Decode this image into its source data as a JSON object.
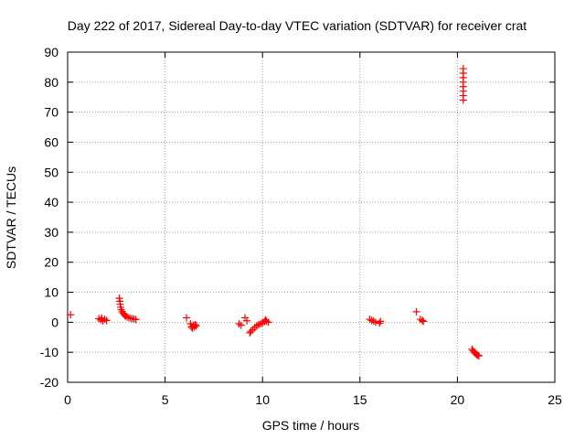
{
  "chart_data": {
    "type": "scatter",
    "title": "Day 222 of 2017, Sidereal Day-to-day VTEC variation (SDTVAR) for receiver crat",
    "xlabel": "GPS time / hours",
    "ylabel": "SDTVAR / TECUs",
    "xlim": [
      0,
      25
    ],
    "ylim": [
      -20,
      90
    ],
    "x_ticks": [
      0,
      5,
      10,
      15,
      20,
      25
    ],
    "y_ticks": [
      -20,
      -10,
      0,
      10,
      20,
      30,
      40,
      50,
      60,
      70,
      80,
      90
    ],
    "grid": true,
    "marker": "+",
    "color": "#ff0000",
    "series": [
      {
        "name": "SDTVAR",
        "points": [
          [
            0.15,
            2.5
          ],
          [
            1.6,
            1.2
          ],
          [
            1.7,
            0.8
          ],
          [
            1.8,
            0.4
          ],
          [
            1.9,
            1.0
          ],
          [
            2.0,
            0.6
          ],
          [
            1.75,
            1.4
          ],
          [
            2.65,
            8.0
          ],
          [
            2.68,
            7.0
          ],
          [
            2.7,
            6.0
          ],
          [
            2.72,
            5.0
          ],
          [
            2.75,
            4.2
          ],
          [
            2.8,
            3.5
          ],
          [
            2.85,
            3.0
          ],
          [
            2.9,
            2.6
          ],
          [
            2.95,
            2.2
          ],
          [
            3.0,
            1.9
          ],
          [
            3.1,
            1.6
          ],
          [
            3.2,
            1.4
          ],
          [
            3.3,
            1.2
          ],
          [
            3.4,
            1.1
          ],
          [
            3.5,
            0.9
          ],
          [
            6.1,
            1.5
          ],
          [
            6.3,
            -0.5
          ],
          [
            6.35,
            -1.5
          ],
          [
            6.4,
            -2.0
          ],
          [
            6.45,
            -1.0
          ],
          [
            6.5,
            -1.6
          ],
          [
            6.55,
            -0.8
          ],
          [
            6.6,
            -1.2
          ],
          [
            8.8,
            -0.5
          ],
          [
            8.9,
            -1.0
          ],
          [
            9.1,
            1.5
          ],
          [
            9.2,
            0.5
          ],
          [
            9.35,
            -3.5
          ],
          [
            9.4,
            -3.0
          ],
          [
            9.5,
            -2.5
          ],
          [
            9.6,
            -1.8
          ],
          [
            9.7,
            -1.2
          ],
          [
            9.8,
            -0.8
          ],
          [
            9.9,
            -0.5
          ],
          [
            10.0,
            -0.2
          ],
          [
            10.1,
            0.2
          ],
          [
            10.15,
            0.8
          ],
          [
            10.2,
            0.4
          ],
          [
            10.3,
            0.0
          ],
          [
            15.5,
            1.0
          ],
          [
            15.6,
            0.6
          ],
          [
            15.7,
            0.4
          ],
          [
            15.8,
            0.0
          ],
          [
            16.0,
            -0.3
          ],
          [
            16.05,
            0.3
          ],
          [
            17.9,
            3.5
          ],
          [
            18.1,
            1.0
          ],
          [
            18.2,
            0.6
          ],
          [
            18.25,
            0.3
          ],
          [
            20.3,
            84.5
          ],
          [
            20.3,
            83.0
          ],
          [
            20.3,
            81.5
          ],
          [
            20.3,
            80.0
          ],
          [
            20.3,
            78.5
          ],
          [
            20.3,
            77.0
          ],
          [
            20.3,
            75.5
          ],
          [
            20.3,
            74.0
          ],
          [
            20.75,
            -9.0
          ],
          [
            20.8,
            -9.5
          ],
          [
            20.85,
            -10.0
          ],
          [
            20.9,
            -10.2
          ],
          [
            20.95,
            -10.5
          ],
          [
            21.0,
            -10.8
          ],
          [
            21.05,
            -11.0
          ],
          [
            21.1,
            -11.2
          ]
        ]
      }
    ]
  }
}
